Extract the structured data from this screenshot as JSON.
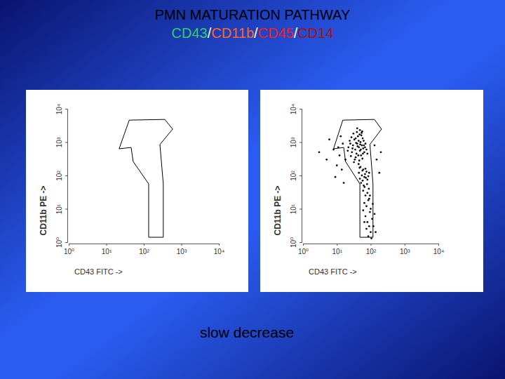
{
  "slide": {
    "title": "PMN MATURATION PATHWAY",
    "subtitle": [
      {
        "text": "CD43",
        "color": "#33cc66"
      },
      {
        "text": "/",
        "color": "#ffffff"
      },
      {
        "text": "CD11b",
        "color": "#ff6622"
      },
      {
        "text": "/",
        "color": "#ffffff"
      },
      {
        "text": "CD45",
        "color": "#ee2222"
      },
      {
        "text": "/",
        "color": "#ffffff"
      },
      {
        "text": "CD14",
        "color": "#aa1111"
      }
    ],
    "caption": "slow decrease"
  },
  "chart_data": [
    {
      "type": "scatter",
      "log": true,
      "xlabel": "CD43 FITC ->",
      "ylabel": "CD11b PE ->",
      "xlim": [
        1,
        10000
      ],
      "ylim": [
        1,
        10000
      ],
      "xticks": [
        {
          "value": 1,
          "label": "10⁰"
        },
        {
          "value": 10,
          "label": "10¹"
        },
        {
          "value": 100,
          "label": "10²"
        },
        {
          "value": 1000,
          "label": "10³"
        },
        {
          "value": 10000,
          "label": "10⁴"
        }
      ],
      "yticks": [
        {
          "value": 1,
          "label": "10⁰"
        },
        {
          "value": 10,
          "label": "10¹"
        },
        {
          "value": 100,
          "label": "10²"
        },
        {
          "value": 1000,
          "label": "10³"
        },
        {
          "value": 10000,
          "label": "10⁴"
        }
      ],
      "gate": {
        "x": [
          41,
          363,
          589,
          269,
          331,
          331,
          135,
          135,
          52,
          46,
          22
        ],
        "y": [
          4570,
          4790,
          2450,
          851,
          56,
          1.4,
          1.4,
          56,
          263,
          692,
          631
        ]
      }
    },
    {
      "type": "scatter",
      "log": true,
      "xlabel": "CD43 FITC ->",
      "ylabel": "CD11b PE ->",
      "color": "#111111",
      "xlim": [
        1,
        10000
      ],
      "ylim": [
        1,
        10000
      ],
      "xticks": [
        {
          "value": 1,
          "label": "10⁰"
        },
        {
          "value": 10,
          "label": "10¹"
        },
        {
          "value": 100,
          "label": "10²"
        },
        {
          "value": 1000,
          "label": "10³"
        },
        {
          "value": 10000,
          "label": "10⁴"
        }
      ],
      "yticks": [
        {
          "value": 1,
          "label": "10⁰"
        },
        {
          "value": 10,
          "label": "10¹"
        },
        {
          "value": 100,
          "label": "10²"
        },
        {
          "value": 1000,
          "label": "10³"
        },
        {
          "value": 10000,
          "label": "10⁴"
        }
      ],
      "gate": {
        "x": [
          15,
          129,
          209,
          95,
          117,
          117,
          48,
          48,
          18,
          16,
          8
        ],
        "y": [
          4570,
          4790,
          2450,
          851,
          56,
          1.4,
          1.4,
          56,
          263,
          692,
          631
        ]
      },
      "x": [
        30,
        35,
        40,
        45,
        50,
        28,
        33,
        38,
        42,
        48,
        55,
        60,
        25,
        22,
        36,
        44,
        52,
        58,
        65,
        70,
        31,
        39,
        47,
        27,
        53,
        62,
        34,
        46,
        57,
        68,
        29,
        41,
        49,
        37,
        43,
        51,
        59,
        24,
        32,
        75,
        26,
        54,
        63,
        44,
        36,
        80,
        21,
        48,
        40,
        56,
        50,
        60,
        45,
        70,
        55,
        65,
        75,
        48,
        58,
        68,
        80,
        52,
        62,
        72,
        85,
        57,
        66,
        90,
        47,
        78,
        60,
        70,
        80,
        90,
        65,
        75,
        85,
        100,
        95,
        70,
        80,
        110,
        90,
        75,
        100,
        120,
        85,
        65,
        105,
        130,
        95,
        115,
        60,
        88,
        140,
        8,
        12,
        5,
        15,
        10,
        6,
        14,
        3,
        11,
        9,
        18,
        16,
        13,
        150,
        200,
        180,
        130
      ],
      "y": [
        800,
        600,
        900,
        700,
        1000,
        500,
        1200,
        450,
        1500,
        550,
        800,
        650,
        900,
        700,
        350,
        1100,
        400,
        1300,
        500,
        900,
        1800,
        2000,
        1700,
        1400,
        1600,
        1100,
        300,
        280,
        320,
        700,
        650,
        750,
        850,
        950,
        400,
        600,
        450,
        1100,
        250,
        600,
        380,
        1900,
        800,
        220,
        1300,
        450,
        550,
        2300,
        2600,
        2100,
        180,
        150,
        120,
        160,
        100,
        90,
        130,
        80,
        70,
        110,
        75,
        60,
        50,
        85,
        95,
        140,
        45,
        120,
        170,
        55,
        35,
        25,
        30,
        20,
        15,
        12,
        18,
        10,
        8,
        6,
        4,
        5,
        3,
        2.5,
        2,
        3,
        1.5,
        4,
        1.3,
        7,
        25,
        14,
        9,
        40,
        2,
        600,
        400,
        300,
        900,
        200,
        1200,
        150,
        500,
        700,
        90,
        300,
        60,
        1500,
        300,
        500,
        120,
        800
      ]
    }
  ]
}
